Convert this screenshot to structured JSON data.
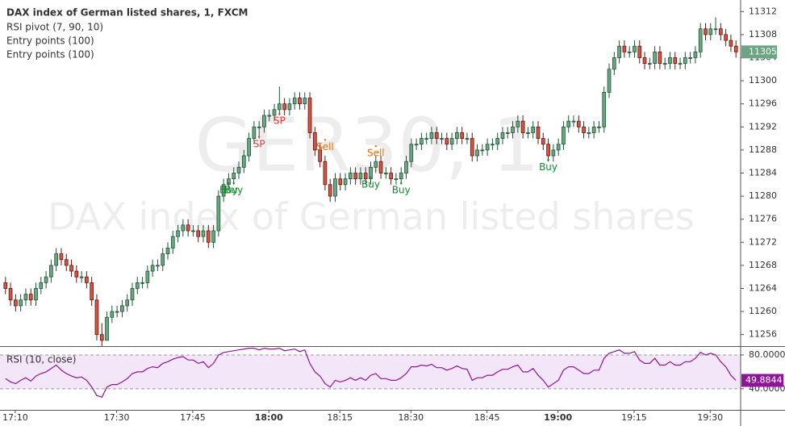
{
  "chart_data": [
    {
      "type": "candlestick",
      "title": "DAX index of German listed shares, 1, FXCM",
      "legend": [
        "RSI pivot (7, 90, 10)",
        "Entry points (100)",
        "Entry points (100)"
      ],
      "watermark": [
        "GER30, 1",
        "DAX index of German listed shares"
      ],
      "up_color": "#6ba583",
      "down_color": "#d75442",
      "up_border": "#225437",
      "down_border": "#5b1a13",
      "ylim": [
        11254,
        11314
      ],
      "yticks": [
        11256,
        11260,
        11264,
        11268,
        11272,
        11276,
        11280,
        11284,
        11288,
        11292,
        11296,
        11300,
        11304,
        11308,
        11312
      ],
      "xlim": [
        -1,
        145
      ],
      "xticks": [
        {
          "value": 2,
          "label": "17:10",
          "bold": false
        },
        {
          "value": 22,
          "label": "17:30",
          "bold": false
        },
        {
          "value": 37,
          "label": "17:45",
          "bold": false
        },
        {
          "value": 52,
          "label": "18:00",
          "bold": true
        },
        {
          "value": 66,
          "label": "18:15",
          "bold": false
        },
        {
          "value": 80,
          "label": "18:30",
          "bold": false
        },
        {
          "value": 95,
          "label": "18:45",
          "bold": false
        },
        {
          "value": 109,
          "label": "19:00",
          "bold": true
        },
        {
          "value": 124,
          "label": "19:15",
          "bold": false
        },
        {
          "value": 139,
          "label": "19:30",
          "bold": false
        }
      ],
      "signal_colors": {
        "Buy": "#138a2e",
        "Sell": "#ef6c00",
        "SP": "#e53935"
      },
      "signals": [
        {
          "label": "Buy",
          "index": 44,
          "price": 11281
        },
        {
          "label": "Buy",
          "index": 45,
          "price": 11281
        },
        {
          "label": "SP",
          "index": 50,
          "price": 11289
        },
        {
          "label": "SP",
          "index": 54,
          "price": 11293
        },
        {
          "label": "Sell",
          "index": 63,
          "price": 11288.5
        },
        {
          "label": "Buy",
          "index": 72,
          "price": 11282
        },
        {
          "label": "Sell",
          "index": 73,
          "price": 11287.4
        },
        {
          "label": "Buy",
          "index": 78,
          "price": 11281
        },
        {
          "label": "Buy",
          "index": 107,
          "price": 11285
        }
      ],
      "ohlc": [
        [
          11265,
          11266,
          11263,
          11264
        ],
        [
          11264,
          11265,
          11261,
          11262
        ],
        [
          11262,
          11263,
          11260,
          11261
        ],
        [
          11261,
          11263,
          11260,
          11262
        ],
        [
          11262,
          11264,
          11261,
          11263
        ],
        [
          11263,
          11264,
          11261,
          11262
        ],
        [
          11262,
          11265,
          11261,
          11264
        ],
        [
          11264,
          11266,
          11263,
          11265
        ],
        [
          11265,
          11267,
          11264,
          11266
        ],
        [
          11266,
          11269,
          11265,
          11268
        ],
        [
          11268,
          11271,
          11267,
          11270
        ],
        [
          11270,
          11271,
          11268,
          11269
        ],
        [
          11269,
          11270,
          11267,
          11268
        ],
        [
          11268,
          11269,
          11266,
          11267
        ],
        [
          11267,
          11268,
          11265,
          11266
        ],
        [
          11266,
          11267,
          11265,
          11266
        ],
        [
          11266,
          11267,
          11264,
          11265
        ],
        [
          11265,
          11266,
          11261,
          11262
        ],
        [
          11262,
          11263,
          11255,
          11256
        ],
        [
          11256,
          11258,
          11254,
          11255
        ],
        [
          11255,
          11260,
          11255,
          11259
        ],
        [
          11259,
          11261,
          11258,
          11260
        ],
        [
          11260,
          11261,
          11259,
          11260
        ],
        [
          11260,
          11262,
          11259,
          11261
        ],
        [
          11261,
          11263,
          11260,
          11262
        ],
        [
          11262,
          11265,
          11261,
          11264
        ],
        [
          11264,
          11266,
          11263,
          11265
        ],
        [
          11265,
          11266,
          11264,
          11265
        ],
        [
          11265,
          11268,
          11264,
          11267
        ],
        [
          11267,
          11269,
          11266,
          11268
        ],
        [
          11268,
          11269,
          11267,
          11268
        ],
        [
          11268,
          11271,
          11267,
          11270
        ],
        [
          11270,
          11272,
          11269,
          11271
        ],
        [
          11271,
          11274,
          11270,
          11273
        ],
        [
          11273,
          11275,
          11272,
          11274
        ],
        [
          11274,
          11276,
          11273,
          11275
        ],
        [
          11275,
          11276,
          11273,
          11274
        ],
        [
          11274,
          11275,
          11273,
          11274
        ],
        [
          11274,
          11275,
          11272,
          11273
        ],
        [
          11273,
          11275,
          11272,
          11274
        ],
        [
          11274,
          11275,
          11271,
          11272
        ],
        [
          11272,
          11275,
          11271,
          11274
        ],
        [
          11274,
          11281,
          11273,
          11280
        ],
        [
          11280,
          11283,
          11279,
          11282
        ],
        [
          11282,
          11284,
          11281,
          11283
        ],
        [
          11283,
          11285,
          11282,
          11284
        ],
        [
          11284,
          11286,
          11283,
          11285
        ],
        [
          11285,
          11288,
          11284,
          11287
        ],
        [
          11287,
          11291,
          11286,
          11290
        ],
        [
          11290,
          11293,
          11289,
          11292
        ],
        [
          11292,
          11293,
          11290,
          11292
        ],
        [
          11292,
          11295,
          11291,
          11294
        ],
        [
          11294,
          11295,
          11293,
          11294
        ],
        [
          11294,
          11296,
          11293,
          11295
        ],
        [
          11295,
          11299,
          11294,
          11296
        ],
        [
          11296,
          11297,
          11294,
          11295
        ],
        [
          11295,
          11297,
          11294,
          11296
        ],
        [
          11296,
          11298,
          11295,
          11297
        ],
        [
          11297,
          11298,
          11295,
          11296
        ],
        [
          11296,
          11298,
          11295,
          11297
        ],
        [
          11297,
          11298,
          11290,
          11291
        ],
        [
          11291,
          11292,
          11287,
          11288
        ],
        [
          11288,
          11289,
          11285,
          11286
        ],
        [
          11286,
          11287,
          11281,
          11282
        ],
        [
          11282,
          11283,
          11279,
          11280
        ],
        [
          11280,
          11284,
          11279,
          11283
        ],
        [
          11283,
          11284,
          11281,
          11282
        ],
        [
          11282,
          11284,
          11281,
          11283
        ],
        [
          11283,
          11285,
          11282,
          11284
        ],
        [
          11284,
          11285,
          11282,
          11283
        ],
        [
          11283,
          11285,
          11282,
          11284
        ],
        [
          11284,
          11285,
          11282,
          11283
        ],
        [
          11283,
          11286,
          11282,
          11285
        ],
        [
          11285,
          11287,
          11284,
          11286
        ],
        [
          11286,
          11287,
          11283,
          11284
        ],
        [
          11284,
          11285,
          11283,
          11284
        ],
        [
          11284,
          11285,
          11282,
          11283
        ],
        [
          11283,
          11284,
          11282,
          11283
        ],
        [
          11283,
          11285,
          11282,
          11284
        ],
        [
          11284,
          11287,
          11283,
          11286
        ],
        [
          11286,
          11290,
          11285,
          11289
        ],
        [
          11289,
          11290,
          11288,
          11289
        ],
        [
          11289,
          11291,
          11288,
          11290
        ],
        [
          11290,
          11291,
          11289,
          11290
        ],
        [
          11290,
          11292,
          11289,
          11291
        ],
        [
          11291,
          11292,
          11289,
          11290
        ],
        [
          11290,
          11291,
          11289,
          11290
        ],
        [
          11290,
          11291,
          11288,
          11289
        ],
        [
          11289,
          11291,
          11288,
          11290
        ],
        [
          11290,
          11292,
          11289,
          11291
        ],
        [
          11291,
          11292,
          11289,
          11290
        ],
        [
          11290,
          11291,
          11289,
          11290
        ],
        [
          11290,
          11291,
          11286,
          11287
        ],
        [
          11287,
          11289,
          11286,
          11288
        ],
        [
          11288,
          11289,
          11287,
          11288
        ],
        [
          11288,
          11290,
          11287,
          11289
        ],
        [
          11289,
          11290,
          11288,
          11289
        ],
        [
          11289,
          11291,
          11288,
          11290
        ],
        [
          11290,
          11292,
          11289,
          11291
        ],
        [
          11291,
          11292,
          11290,
          11291
        ],
        [
          11291,
          11293,
          11290,
          11292
        ],
        [
          11292,
          11294,
          11291,
          11293
        ],
        [
          11293,
          11294,
          11290,
          11291
        ],
        [
          11291,
          11292,
          11290,
          11291
        ],
        [
          11291,
          11293,
          11290,
          11292
        ],
        [
          11292,
          11293,
          11289,
          11290
        ],
        [
          11290,
          11291,
          11288,
          11289
        ],
        [
          11289,
          11290,
          11286,
          11287
        ],
        [
          11287,
          11289,
          11286,
          11288
        ],
        [
          11288,
          11290,
          11287,
          11289
        ],
        [
          11289,
          11293,
          11288,
          11292
        ],
        [
          11292,
          11294,
          11291,
          11293
        ],
        [
          11293,
          11294,
          11292,
          11293
        ],
        [
          11293,
          11294,
          11291,
          11292
        ],
        [
          11292,
          11293,
          11290,
          11291
        ],
        [
          11291,
          11292,
          11290,
          11291
        ],
        [
          11291,
          11293,
          11290,
          11292
        ],
        [
          11292,
          11293,
          11291,
          11292
        ],
        [
          11292,
          11299,
          11291,
          11298
        ],
        [
          11298,
          11303,
          11297,
          11302
        ],
        [
          11302,
          11305,
          11301,
          11304
        ],
        [
          11304,
          11307,
          11303,
          11306
        ],
        [
          11306,
          11307,
          11304,
          11305
        ],
        [
          11305,
          11306,
          11304,
          11305
        ],
        [
          11305,
          11307,
          11304,
          11306
        ],
        [
          11306,
          11307,
          11303,
          11304
        ],
        [
          11304,
          11305,
          11302,
          11303
        ],
        [
          11303,
          11304,
          11302,
          11303
        ],
        [
          11303,
          11306,
          11302,
          11305
        ],
        [
          11305,
          11306,
          11302,
          11303
        ],
        [
          11303,
          11304,
          11302,
          11303
        ],
        [
          11303,
          11305,
          11302,
          11304
        ],
        [
          11304,
          11305,
          11302,
          11303
        ],
        [
          11303,
          11304,
          11302,
          11303
        ],
        [
          11303,
          11305,
          11302,
          11304
        ],
        [
          11304,
          11305,
          11303,
          11304
        ],
        [
          11304,
          11306,
          11303,
          11305
        ],
        [
          11305,
          11310,
          11304,
          11309
        ],
        [
          11309,
          11310,
          11307,
          11308
        ],
        [
          11308,
          11310,
          11307,
          11309
        ],
        [
          11309,
          11311,
          11308,
          11309
        ],
        [
          11309,
          11310,
          11307,
          11308
        ],
        [
          11308,
          11309,
          11306,
          11307
        ],
        [
          11307,
          11308,
          11305,
          11306
        ],
        [
          11306,
          11307,
          11304,
          11305
        ]
      ]
    },
    {
      "type": "line",
      "title": "RSI (10, close)",
      "color": "#8e1599",
      "band_color": "#f3e6f8",
      "ylim": [
        15,
        89.5
      ],
      "yticks": [
        {
          "value": 80,
          "label": "80.0000"
        },
        {
          "value": 40,
          "label": "40.0000"
        }
      ],
      "values": [
        52,
        48,
        46,
        50,
        53,
        49,
        55,
        58,
        60,
        64,
        68,
        62,
        58,
        55,
        53,
        54,
        50,
        42,
        32,
        30,
        42,
        45,
        45,
        48,
        52,
        58,
        60,
        60,
        64,
        66,
        65,
        70,
        72,
        75,
        77,
        78,
        74,
        74,
        70,
        72,
        65,
        70,
        80,
        83,
        84,
        85,
        86,
        87,
        88,
        88,
        86,
        88,
        87,
        87,
        88,
        85,
        86,
        87,
        84,
        86,
        70,
        60,
        55,
        46,
        42,
        50,
        48,
        50,
        53,
        50,
        53,
        50,
        56,
        58,
        52,
        52,
        50,
        50,
        53,
        58,
        66,
        66,
        68,
        67,
        69,
        65,
        65,
        62,
        64,
        67,
        64,
        63,
        50,
        53,
        53,
        56,
        56,
        60,
        63,
        63,
        66,
        68,
        60,
        60,
        64,
        56,
        50,
        42,
        46,
        50,
        62,
        66,
        66,
        62,
        58,
        58,
        62,
        62,
        76,
        82,
        84,
        86,
        82,
        82,
        84,
        74,
        70,
        70,
        76,
        68,
        68,
        72,
        68,
        68,
        72,
        72,
        76,
        83,
        80,
        82,
        80,
        72,
        66,
        56,
        49.8844
      ]
    }
  ]
}
